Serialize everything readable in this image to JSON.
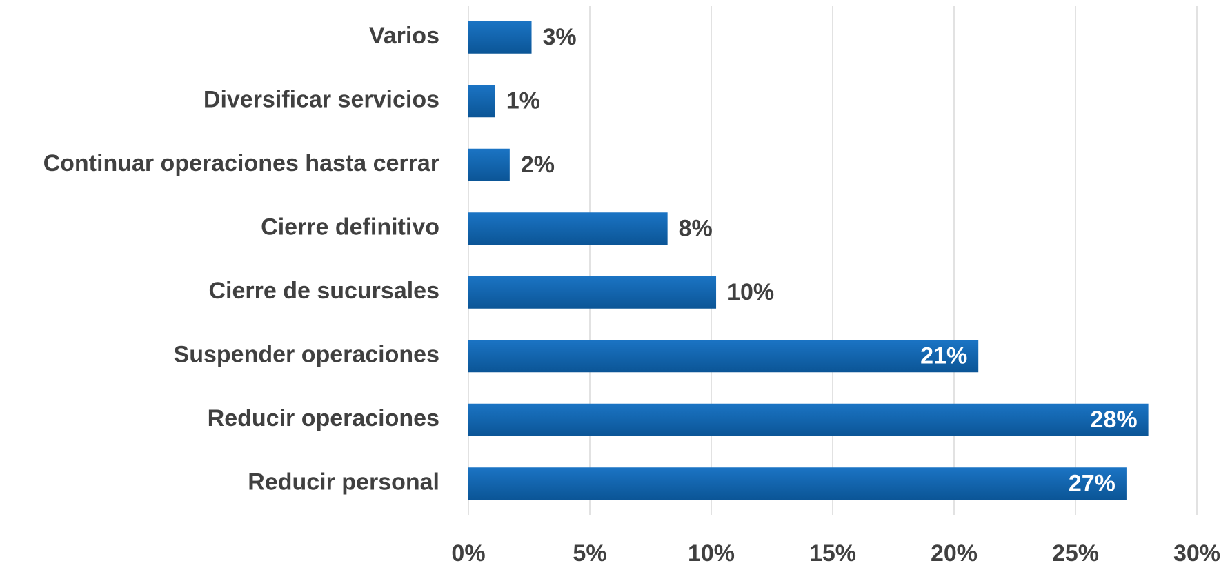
{
  "chart_data": {
    "type": "hbar",
    "categories": [
      "Varios",
      "Diversificar servicios",
      "Continuar operaciones hasta cerrar",
      "Cierre definitivo",
      "Cierre de sucursales",
      "Suspender operaciones",
      "Reducir operaciones",
      "Reducir personal"
    ],
    "values": [
      2.6,
      1.1,
      1.7,
      8.2,
      10.2,
      21,
      28,
      27.1
    ],
    "value_labels": [
      "3%",
      "1%",
      "2%",
      "8%",
      "10%",
      "21%",
      "28%",
      "27%"
    ],
    "color": "#0f65b3",
    "xlim": [
      0,
      30
    ],
    "xticks": [
      {
        "value": 0,
        "label": "0%"
      },
      {
        "value": 5,
        "label": "5%"
      },
      {
        "value": 10,
        "label": "10%"
      },
      {
        "value": 15,
        "label": "15%"
      },
      {
        "value": 20,
        "label": "20%"
      },
      {
        "value": 25,
        "label": "25%"
      },
      {
        "value": 30,
        "label": "30%"
      }
    ],
    "grid": true
  }
}
